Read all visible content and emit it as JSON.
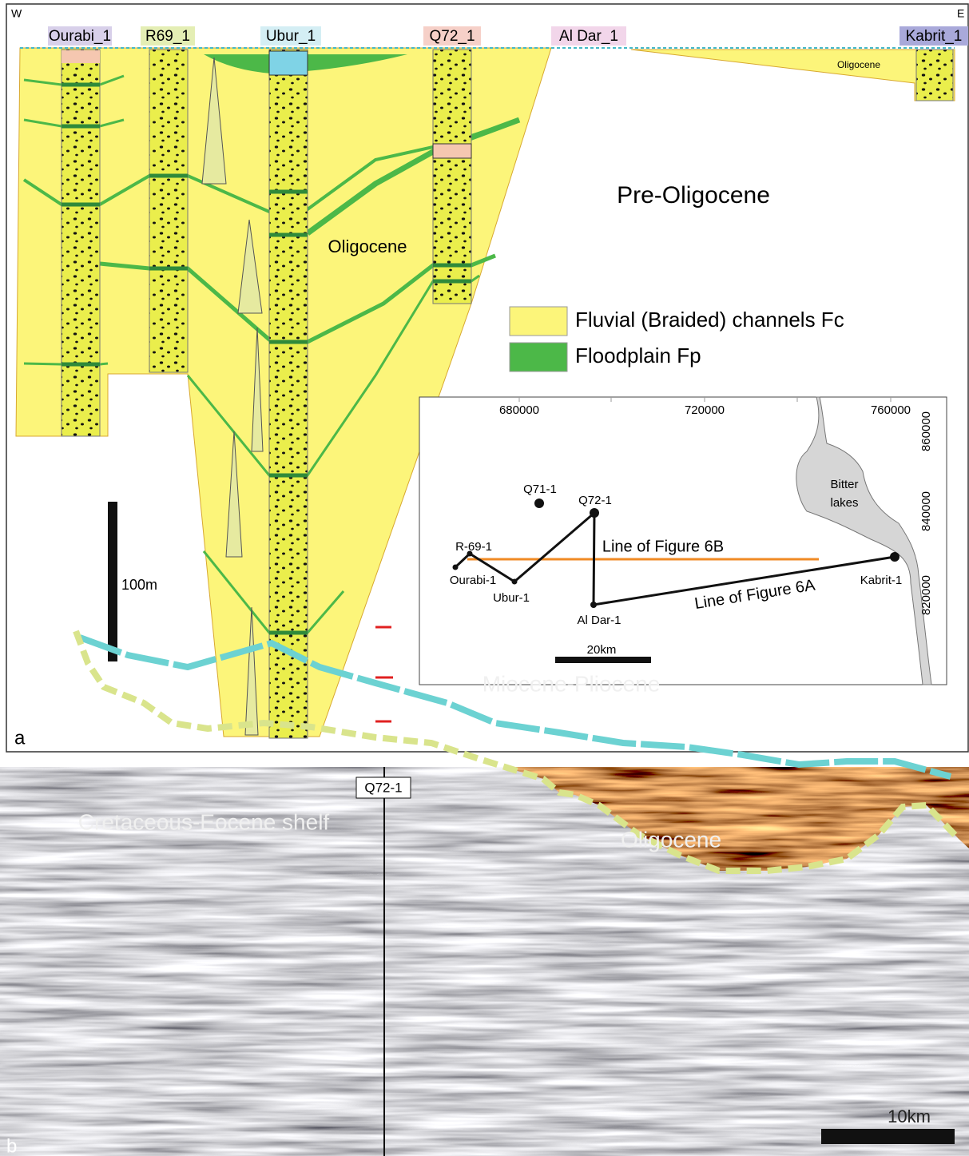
{
  "panel_a": {
    "compass": {
      "west": "W",
      "east": "E"
    },
    "wells": [
      "Ourabi_1",
      "R69_1",
      "Ubur_1",
      "Q72_1",
      "Al Dar_1",
      "Kabrit_1"
    ],
    "labels": {
      "oligocene_east": "Oligocene",
      "pre_oligocene": "Pre-Oligocene",
      "oligocene": "Oligocene"
    },
    "legend": [
      "Fluvial (Braided) channels Fc",
      "Floodplain Fp"
    ],
    "scale_bar": "100m",
    "panel_label": "a",
    "inset_map": {
      "x_ticks": [
        680000,
        720000,
        760000
      ],
      "y_ticks": [
        860000,
        840000,
        820000
      ],
      "wells": [
        "Q71-1",
        "Q72-1",
        "R-69-1",
        "Ourabi-1",
        "Ubur-1",
        "Al Dar-1",
        "Kabrit-1"
      ],
      "lake_label": [
        "Bitter",
        "lakes"
      ],
      "lines": [
        "Line of Figure 6B",
        "Line of Figure 6A"
      ],
      "scale_bar": "20km"
    }
  },
  "panel_b": {
    "well": "Q72-1",
    "labels": {
      "miocene_pliocene": "Miocene-Pliocene",
      "cretaceous_eocene": "Cretaceous-Eocene shelf",
      "oligocene": "Oligocene"
    },
    "scale_bar": "10km",
    "panel_label": "b"
  }
}
